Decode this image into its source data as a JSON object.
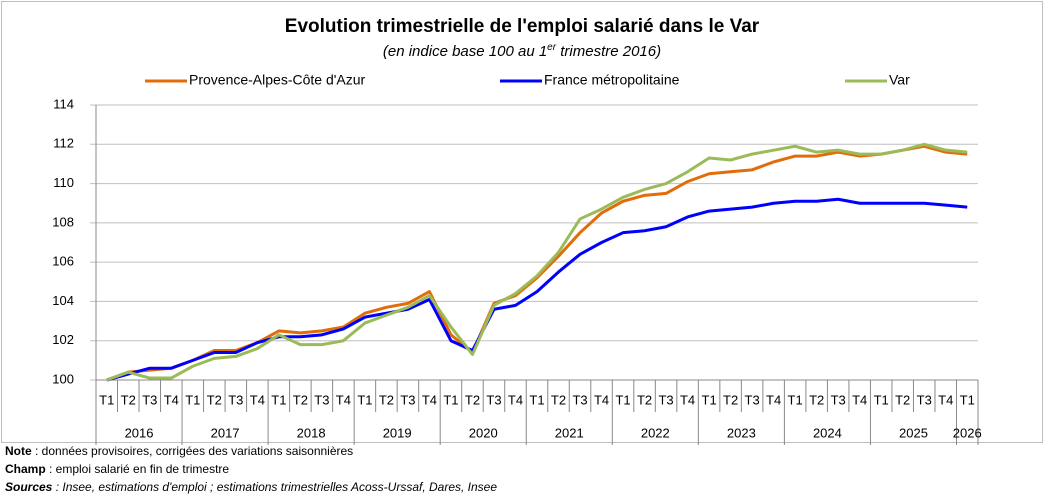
{
  "chart_data": {
    "type": "line",
    "title": "Evolution trimestrielle de l'emploi salarié dans le Var",
    "subtitle": [
      "(en indice base 100 au 1",
      "er",
      " trimestre 2016)"
    ],
    "categories": [
      "T1",
      "T2",
      "T3",
      "T4",
      "T1",
      "T2",
      "T3",
      "T4",
      "T1",
      "T2",
      "T3",
      "T4",
      "T1",
      "T2",
      "T3",
      "T4",
      "T1",
      "T2",
      "T3",
      "T4",
      "T1",
      "T2",
      "T3",
      "T4",
      "T1",
      "T2",
      "T3",
      "T4",
      "T1",
      "T2",
      "T3",
      "T4",
      "T1",
      "T2",
      "T3",
      "T4",
      "T1",
      "T2",
      "T3",
      "T4",
      "T1"
    ],
    "years": [
      "2016",
      "2017",
      "2018",
      "2019",
      "2020",
      "2021",
      "2022",
      "2023",
      "2024",
      "2025",
      "2026"
    ],
    "ylim": [
      100,
      114
    ],
    "yticks": [
      100,
      102,
      104,
      106,
      108,
      110,
      112,
      114
    ],
    "grid": true,
    "series": [
      {
        "name": "Provence-Alpes-Côte d'Azur",
        "color": "#e36c0a",
        "values": [
          100,
          100.4,
          100.5,
          100.6,
          101.0,
          101.5,
          101.5,
          101.9,
          102.5,
          102.4,
          102.5,
          102.7,
          103.4,
          103.7,
          103.9,
          104.5,
          102.3,
          101.4,
          103.9,
          104.3,
          105.2,
          106.3,
          107.5,
          108.5,
          109.1,
          109.4,
          109.5,
          110.1,
          110.5,
          110.6,
          110.7,
          111.1,
          111.4,
          111.4,
          111.6,
          111.4,
          111.5,
          111.7,
          111.9,
          111.6,
          111.5
        ]
      },
      {
        "name": "France métropolitaine",
        "color": "#0000ff",
        "values": [
          100,
          100.3,
          100.6,
          100.6,
          101.0,
          101.4,
          101.4,
          101.9,
          102.2,
          102.2,
          102.3,
          102.6,
          103.2,
          103.4,
          103.6,
          104.1,
          102.0,
          101.5,
          103.6,
          103.8,
          104.5,
          105.5,
          106.4,
          107.0,
          107.5,
          107.6,
          107.8,
          108.3,
          108.6,
          108.7,
          108.8,
          109.0,
          109.1,
          109.1,
          109.2,
          109.0,
          109.0,
          109.0,
          109.0,
          108.9,
          108.8
        ]
      },
      {
        "name": "Var",
        "color": "#9bbb59",
        "values": [
          100,
          100.4,
          100.1,
          100.1,
          100.7,
          101.1,
          101.2,
          101.6,
          102.3,
          101.8,
          101.8,
          102.0,
          102.9,
          103.3,
          103.7,
          104.3,
          102.7,
          101.3,
          103.8,
          104.4,
          105.3,
          106.5,
          108.2,
          108.7,
          109.3,
          109.7,
          110.0,
          110.6,
          111.3,
          111.2,
          111.5,
          111.7,
          111.9,
          111.6,
          111.7,
          111.5,
          111.5,
          111.7,
          112.0,
          111.7,
          111.6
        ]
      }
    ],
    "notes": [
      {
        "label": "Note",
        "text": " : données provisoires, corrigées des variations saisonnières"
      },
      {
        "label": "Champ",
        "text": " : emploi salarié en fin de trimestre"
      },
      {
        "label": "Sources",
        "text": " : Insee, estimations d'emploi ; estimations trimestrielles Acoss-Urssaf, Dares, Insee"
      }
    ]
  }
}
